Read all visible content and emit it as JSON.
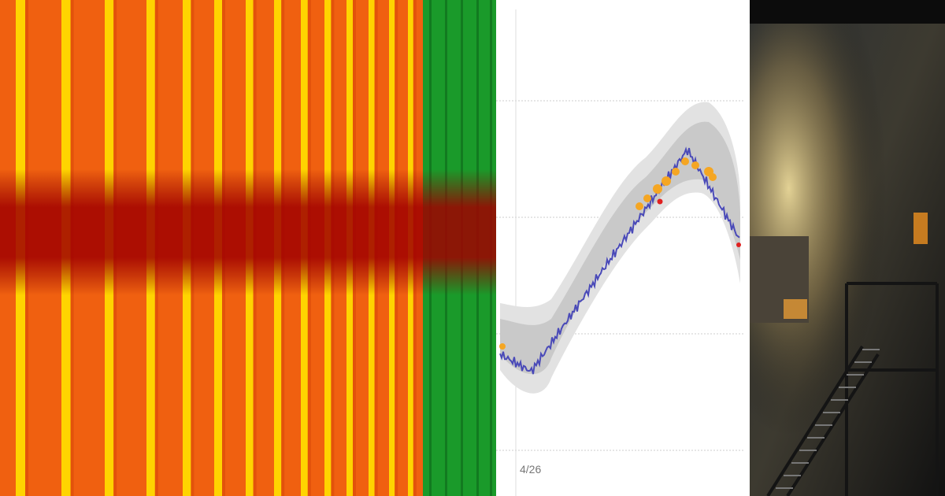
{
  "chart": {
    "x_label": "4/26"
  }
}
